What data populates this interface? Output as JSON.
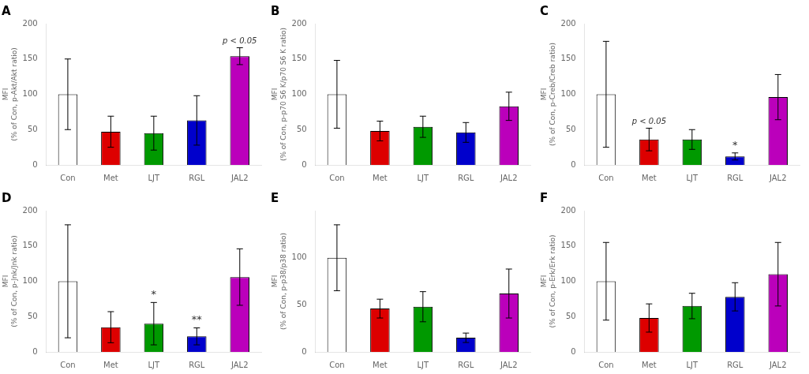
{
  "chart_data": [
    {
      "type": "bar",
      "title": "A",
      "ylabel": "MFI\n(% of Con, p-Akt/Akt ratio)",
      "categories": [
        "Con",
        "Met",
        "LJT",
        "RGL",
        "JAL2"
      ],
      "values": [
        100,
        47,
        45,
        63,
        154
      ],
      "errors": [
        50,
        22,
        24,
        35,
        12
      ],
      "colors": [
        "white",
        "#dd0000",
        "#009900",
        "#0000cc",
        "#bb00bb"
      ],
      "ylim": [
        0,
        200
      ],
      "yticks": [
        0,
        50,
        100,
        150,
        200
      ],
      "grid": false,
      "annotations": [
        {
          "category": "JAL2",
          "text": "p < 0.05",
          "italic": true
        }
      ]
    },
    {
      "type": "bar",
      "title": "B",
      "ylabel": "MFI\n(% of Con, p-p70 S6 K/p70 S6 K ratio)",
      "categories": [
        "Con",
        "Met",
        "LJT",
        "RGL",
        "JAL2"
      ],
      "values": [
        100,
        48,
        54,
        46,
        83
      ],
      "errors": [
        48,
        14,
        15,
        14,
        20
      ],
      "colors": [
        "white",
        "#dd0000",
        "#009900",
        "#0000cc",
        "#bb00bb"
      ],
      "ylim": [
        0,
        200
      ],
      "yticks": [
        0,
        50,
        100,
        150,
        200
      ],
      "grid": false,
      "annotations": []
    },
    {
      "type": "bar",
      "title": "C",
      "ylabel": "MFI\n(% of Con, p-Creb/Creb ratio)",
      "categories": [
        "Con",
        "Met",
        "LJT",
        "RGL",
        "JAL2"
      ],
      "values": [
        100,
        36,
        36,
        12,
        96
      ],
      "errors": [
        75,
        16,
        14,
        5,
        32
      ],
      "colors": [
        "white",
        "#dd0000",
        "#009900",
        "#0000cc",
        "#bb00bb"
      ],
      "ylim": [
        0,
        200
      ],
      "yticks": [
        0,
        50,
        100,
        150,
        200
      ],
      "grid": false,
      "annotations": [
        {
          "category": "Met",
          "text": "p < 0.05",
          "italic": true
        },
        {
          "category": "RGL",
          "text": "*",
          "italic": false
        }
      ]
    },
    {
      "type": "bar",
      "title": "D",
      "ylabel": "MFI\n(% of Con, p-Jnk/Jnk ratio)",
      "categories": [
        "Con",
        "Met",
        "LJT",
        "RGL",
        "JAL2"
      ],
      "values": [
        100,
        35,
        40,
        22,
        106
      ],
      "errors": [
        80,
        22,
        30,
        12,
        40
      ],
      "colors": [
        "white",
        "#dd0000",
        "#009900",
        "#0000cc",
        "#bb00bb"
      ],
      "ylim": [
        0,
        200
      ],
      "yticks": [
        0,
        50,
        100,
        150,
        200
      ],
      "grid": false,
      "annotations": [
        {
          "category": "LJT",
          "text": "*",
          "italic": false
        },
        {
          "category": "RGL",
          "text": "**",
          "italic": false
        }
      ]
    },
    {
      "type": "bar",
      "title": "E",
      "ylabel": "MFI\n(% of Con, p-p38/p38 ratio)",
      "categories": [
        "Con",
        "Met",
        "LJT",
        "RGL",
        "JAL2"
      ],
      "values": [
        100,
        46,
        48,
        15,
        62
      ],
      "errors": [
        35,
        10,
        16,
        5,
        26
      ],
      "colors": [
        "white",
        "#dd0000",
        "#009900",
        "#0000cc",
        "#bb00bb"
      ],
      "ylim": [
        0,
        150
      ],
      "yticks": [
        0,
        50,
        100
      ],
      "grid": false,
      "annotations": []
    },
    {
      "type": "bar",
      "title": "F",
      "ylabel": "MFI\n(% of Con, p-Erk/Erk ratio)",
      "categories": [
        "Con",
        "Met",
        "LJT",
        "RGL",
        "JAL2"
      ],
      "values": [
        100,
        48,
        65,
        78,
        110
      ],
      "errors": [
        55,
        20,
        18,
        20,
        45
      ],
      "colors": [
        "white",
        "#dd0000",
        "#009900",
        "#0000cc",
        "#bb00bb"
      ],
      "ylim": [
        0,
        200
      ],
      "yticks": [
        0,
        50,
        100,
        150,
        200
      ],
      "grid": false,
      "annotations": []
    }
  ]
}
